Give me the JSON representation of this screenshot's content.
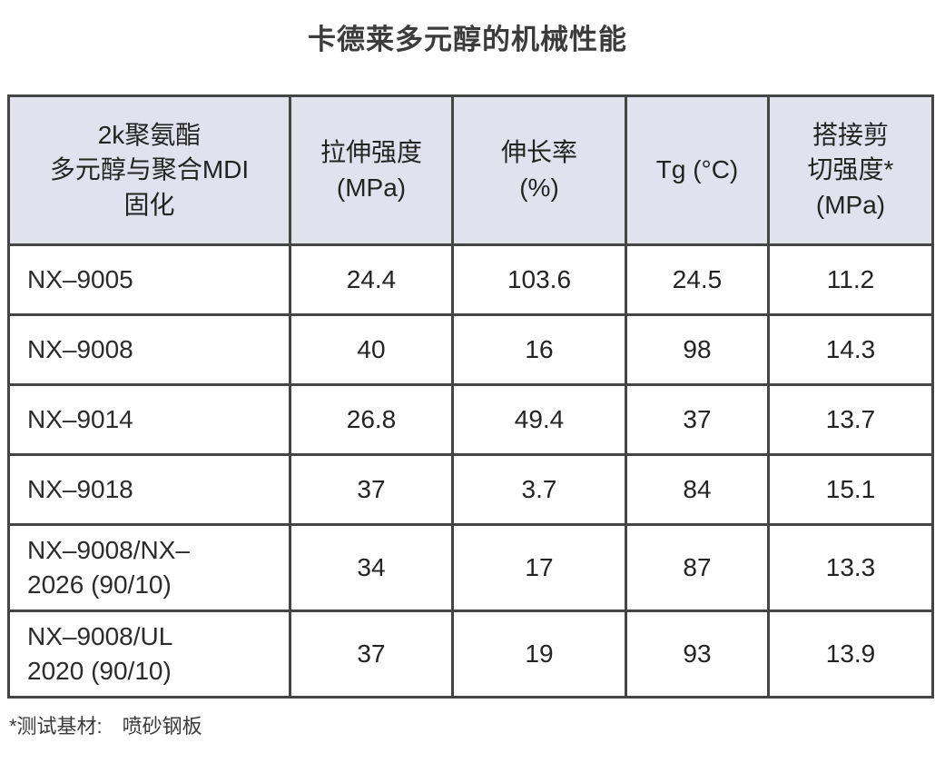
{
  "page": {
    "title": "卡德莱多元醇的机械性能",
    "footnote": "*测试基材:　喷砂钢板"
  },
  "table": {
    "headers": {
      "product": "2k聚氨酯\n多元醇与聚合MDI\n固化",
      "tensile": "拉伸强度\n(MPa)",
      "elongation": "伸长率\n(%)",
      "tg": "Tg (°C)",
      "lap_shear": "搭接剪\n切强度*\n(MPa)"
    },
    "rows": [
      {
        "product": "NX–9005",
        "tensile": "24.4",
        "elongation": "103.6",
        "tg": "24.5",
        "lap_shear": "11.2"
      },
      {
        "product": "NX–9008",
        "tensile": "40",
        "elongation": "16",
        "tg": "98",
        "lap_shear": "14.3"
      },
      {
        "product": "NX–9014",
        "tensile": "26.8",
        "elongation": "49.4",
        "tg": "37",
        "lap_shear": "13.7"
      },
      {
        "product": "NX–9018",
        "tensile": "37",
        "elongation": "3.7",
        "tg": "84",
        "lap_shear": "15.1"
      },
      {
        "product": "NX–9008/NX–\n2026 (90/10)",
        "tensile": "34",
        "elongation": "17",
        "tg": "87",
        "lap_shear": "13.3"
      },
      {
        "product": "NX–9008/UL\n2020 (90/10)",
        "tensile": "37",
        "elongation": "19",
        "tg": "93",
        "lap_shear": "13.9"
      }
    ]
  },
  "colors": {
    "header_background": "#e2e2ee",
    "border": "#454545",
    "title_text": "#3c3c3c",
    "cell_text": "#232323"
  }
}
